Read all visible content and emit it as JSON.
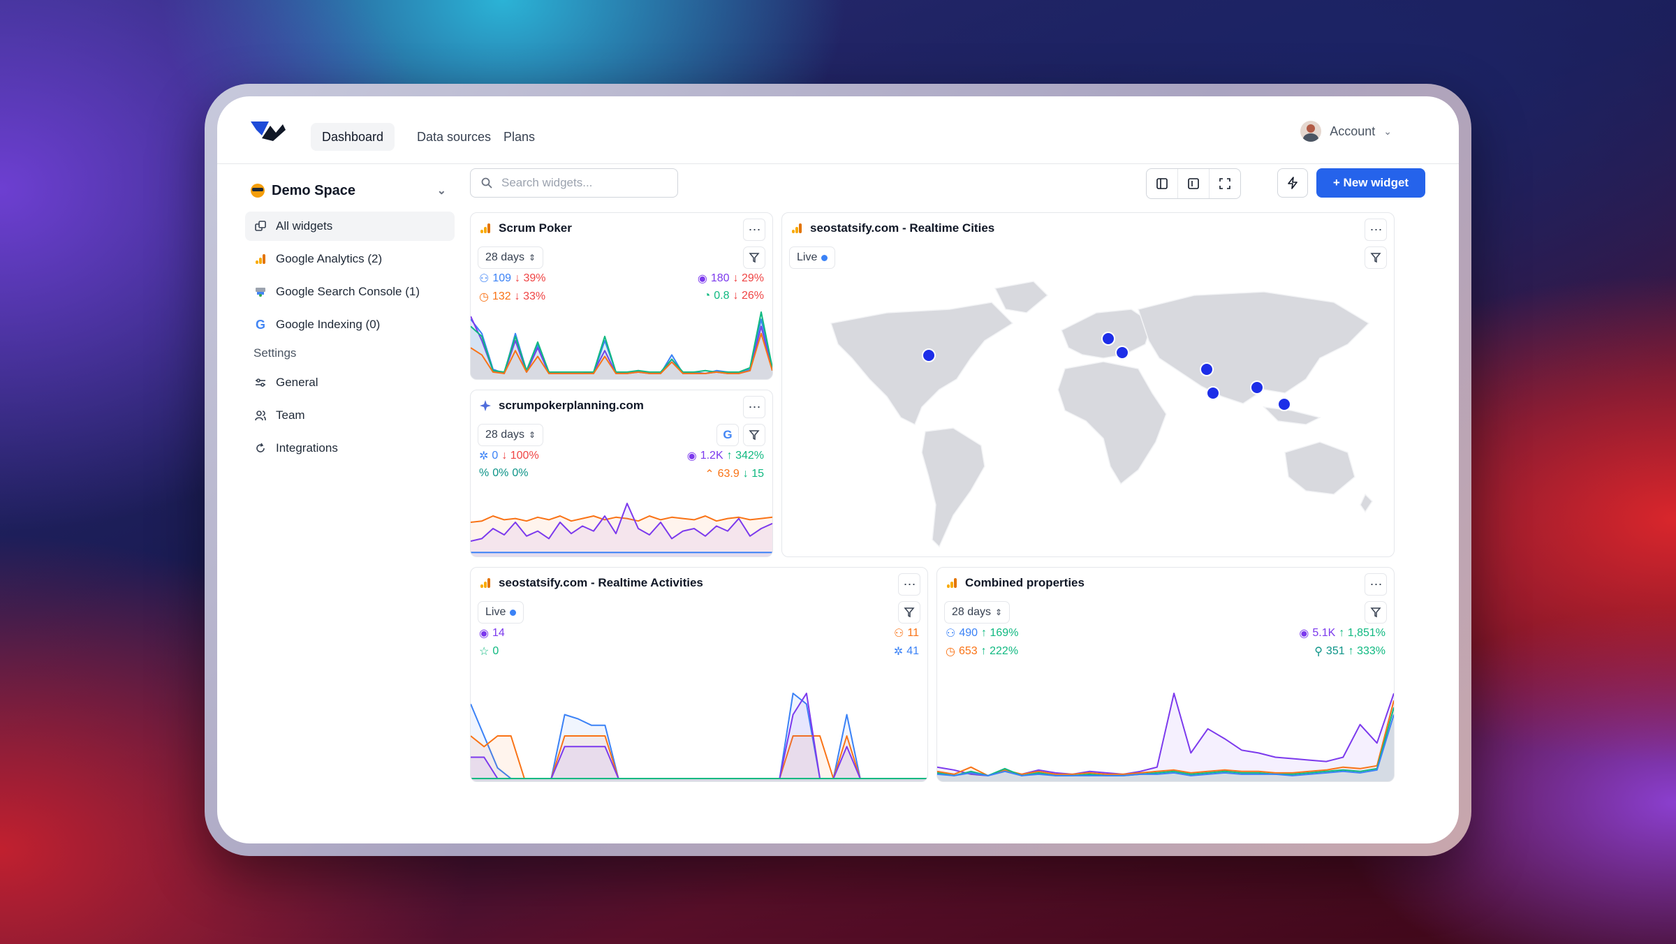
{
  "nav": {
    "tabs": [
      "Dashboard",
      "Data sources",
      "Plans"
    ],
    "account": "Account"
  },
  "sidebar": {
    "space": "Demo Space",
    "items": [
      "All widgets",
      "Google Analytics (2)",
      "Google Search Console (1)",
      "Google Indexing (0)"
    ],
    "settings_label": "Settings",
    "settings": [
      "General",
      "Team",
      "Integrations"
    ]
  },
  "toolbar": {
    "search_placeholder": "Search widgets...",
    "new_widget": "+ New widget"
  },
  "colors": {
    "accent": "#2563eb",
    "blue": "#3b82f6",
    "red": "#ef4444",
    "purple": "#7c3aed",
    "orange": "#f97316",
    "green": "#10b981"
  },
  "widgets": {
    "scrum": {
      "title": "Scrum Poker",
      "range": "28 days",
      "m1": "109",
      "m1c": "↓ 39%",
      "m2": "180",
      "m2c": "↓ 29%",
      "m3": "132",
      "m3c": "↓ 33%",
      "m4": "0.8",
      "m4c": "↓ 26%"
    },
    "planning": {
      "title": "scrumpokerplanning.com",
      "range": "28 days",
      "m1": "0",
      "m1c": "↓ 100%",
      "m2": "1.2K",
      "m2c": "↑ 342%",
      "m3": "0%",
      "m3c": "0%",
      "m4": "63.9",
      "m4c": "↓ 15"
    },
    "cities": {
      "title": "seostatsify.com - Realtime Cities",
      "live": "Live"
    },
    "activities": {
      "title": "seostatsify.com - Realtime Activities",
      "live": "Live",
      "m1": "14",
      "m2": "0",
      "m3": "11",
      "m4": "41"
    },
    "combined": {
      "title": "Combined properties",
      "range": "28 days",
      "m1": "490",
      "m1c": "↑ 169%",
      "m2": "5.1K",
      "m2c": "↑ 1,851%",
      "m3": "653",
      "m3c": "↑ 222%",
      "m4": "351",
      "m4c": "↑ 333%"
    }
  },
  "chart_data": [
    {
      "type": "line",
      "id": "scrum",
      "series": [
        {
          "color": "#3b82f6",
          "values": [
            40,
            30,
            5,
            2,
            30,
            4,
            22,
            3,
            2,
            2,
            2,
            2,
            25,
            3,
            2,
            4,
            2,
            2,
            15,
            2,
            3,
            2,
            4,
            3,
            2,
            5,
            40,
            5
          ]
        },
        {
          "color": "#7c3aed",
          "values": [
            42,
            25,
            4,
            2,
            25,
            3,
            20,
            2,
            2,
            2,
            2,
            3,
            18,
            2,
            2,
            3,
            2,
            2,
            12,
            2,
            2,
            2,
            3,
            2,
            2,
            4,
            35,
            4
          ]
        },
        {
          "color": "#10b981",
          "values": [
            35,
            28,
            4,
            3,
            28,
            4,
            24,
            3,
            3,
            3,
            3,
            3,
            28,
            3,
            3,
            4,
            3,
            3,
            12,
            3,
            3,
            4,
            3,
            3,
            3,
            6,
            45,
            6
          ]
        },
        {
          "color": "#f97316",
          "values": [
            20,
            15,
            3,
            2,
            18,
            3,
            14,
            2,
            2,
            2,
            2,
            2,
            14,
            2,
            2,
            3,
            2,
            2,
            10,
            2,
            2,
            2,
            3,
            2,
            2,
            4,
            30,
            4
          ]
        }
      ]
    },
    {
      "type": "line",
      "id": "planning",
      "series": [
        {
          "color": "#f97316",
          "values": [
            25,
            26,
            30,
            27,
            28,
            26,
            29,
            27,
            30,
            26,
            28,
            30,
            27,
            29,
            28,
            26,
            30,
            27,
            29,
            28,
            27,
            30,
            26,
            28,
            29,
            27,
            28,
            29
          ]
        },
        {
          "color": "#7c3aed",
          "values": [
            10,
            12,
            20,
            15,
            25,
            14,
            18,
            12,
            25,
            16,
            22,
            18,
            30,
            16,
            40,
            20,
            15,
            25,
            12,
            18,
            20,
            14,
            22,
            18,
            28,
            14,
            20,
            24
          ]
        },
        {
          "color": "#3b82f6",
          "values": [
            1,
            1,
            1,
            1,
            1,
            1,
            1,
            1,
            1,
            1,
            1,
            1,
            1,
            1,
            1,
            1,
            1,
            1,
            1,
            1,
            1,
            1,
            1,
            1,
            1,
            1,
            1,
            1
          ]
        }
      ]
    },
    {
      "type": "line",
      "id": "activities",
      "series": [
        {
          "color": "#3b82f6",
          "values": [
            35,
            20,
            5,
            0,
            0,
            0,
            0,
            30,
            28,
            25,
            25,
            0,
            0,
            0,
            0,
            0,
            0,
            0,
            0,
            0,
            0,
            0,
            0,
            0,
            40,
            35,
            0,
            0,
            30,
            0,
            0,
            0,
            0,
            0,
            0
          ]
        },
        {
          "color": "#f97316",
          "values": [
            20,
            15,
            20,
            20,
            0,
            0,
            0,
            20,
            20,
            20,
            20,
            0,
            0,
            0,
            0,
            0,
            0,
            0,
            0,
            0,
            0,
            0,
            0,
            0,
            20,
            20,
            20,
            0,
            20,
            0,
            0,
            0,
            0,
            0,
            0
          ]
        },
        {
          "color": "#7c3aed",
          "values": [
            10,
            10,
            0,
            0,
            0,
            0,
            0,
            15,
            15,
            15,
            15,
            0,
            0,
            0,
            0,
            0,
            0,
            0,
            0,
            0,
            0,
            0,
            0,
            0,
            30,
            40,
            0,
            0,
            15,
            0,
            0,
            0,
            0,
            0,
            0
          ]
        },
        {
          "color": "#10b981",
          "values": [
            0,
            0,
            0,
            0,
            0,
            0,
            0,
            0,
            0,
            0,
            0,
            0,
            0,
            0,
            0,
            0,
            0,
            0,
            0,
            0,
            0,
            0,
            0,
            0,
            0,
            0,
            0,
            0,
            0,
            0,
            0,
            0,
            0,
            0,
            0
          ]
        }
      ]
    },
    {
      "type": "line",
      "id": "combined",
      "series": [
        {
          "color": "#7c3aed",
          "values": [
            8,
            6,
            3,
            2,
            5,
            3,
            6,
            4,
            3,
            5,
            4,
            3,
            5,
            8,
            60,
            18,
            35,
            28,
            20,
            18,
            15,
            14,
            13,
            12,
            15,
            38,
            25,
            60
          ]
        },
        {
          "color": "#f97316",
          "values": [
            5,
            3,
            8,
            2,
            6,
            3,
            5,
            3,
            3,
            4,
            3,
            3,
            4,
            5,
            6,
            4,
            5,
            6,
            5,
            5,
            4,
            4,
            5,
            6,
            8,
            7,
            9,
            55
          ]
        },
        {
          "color": "#10b981",
          "values": [
            4,
            2,
            5,
            2,
            7,
            2,
            4,
            2,
            2,
            3,
            2,
            2,
            3,
            4,
            5,
            3,
            4,
            5,
            4,
            4,
            3,
            3,
            4,
            5,
            6,
            5,
            7,
            50
          ]
        },
        {
          "color": "#3b82f6",
          "values": [
            3,
            2,
            4,
            2,
            5,
            2,
            3,
            2,
            2,
            2,
            2,
            2,
            3,
            3,
            4,
            2,
            3,
            4,
            3,
            3,
            3,
            2,
            3,
            4,
            5,
            4,
            6,
            45
          ]
        }
      ]
    }
  ],
  "map": {
    "markers_count": 7
  }
}
